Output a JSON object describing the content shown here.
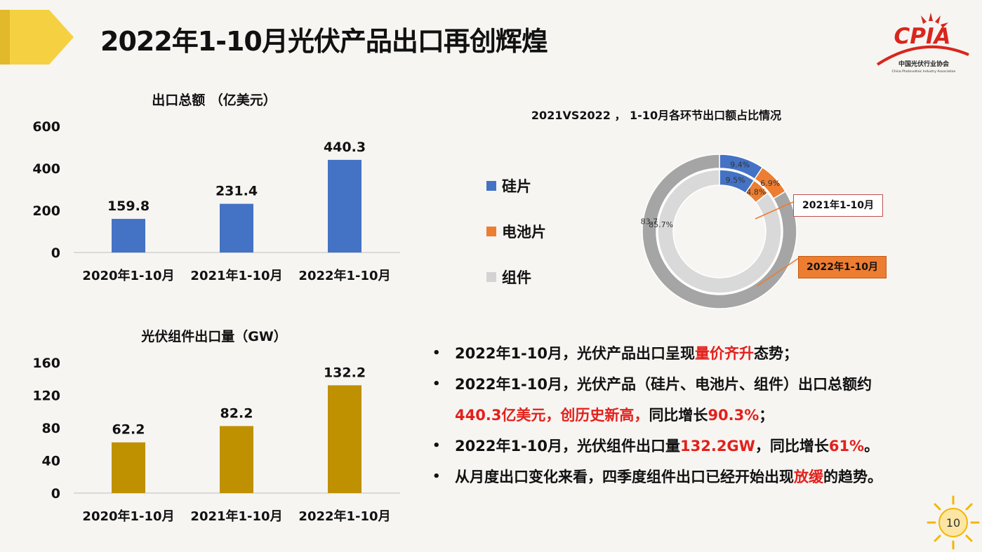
{
  "header": {
    "title": "2022年1-10月光伏产品出口再创辉煌",
    "logo_text": "CPIA",
    "logo_subtitle_cn": "中国光伏行业协会",
    "logo_subtitle_en": "China Photovoltaic Industry Association"
  },
  "colors": {
    "accent_yellow": "#f5d142",
    "bar_blue": "#4472c4",
    "bar_gold": "#bf9000",
    "pie_blue": "#4472c4",
    "pie_orange": "#ed7d31",
    "pie_gray_outer": "#a5a5a5",
    "pie_gray_inner": "#d9d9d9",
    "highlight_red": "#e3201b",
    "logo_red": "#d9261c"
  },
  "chart_data": [
    {
      "type": "bar",
      "title": "出口总额 （亿美元）",
      "categories": [
        "2020年1-10月",
        "2021年1-10月",
        "2022年1-10月"
      ],
      "values": [
        159.8,
        231.4,
        440.3
      ],
      "value_labels": [
        "159.8",
        "231.4",
        "440.3"
      ],
      "ylim": [
        0,
        600
      ],
      "yticks": [
        "0",
        "200",
        "400",
        "600"
      ],
      "ytick_values": [
        0,
        200,
        400,
        600
      ],
      "color": "#4472c4",
      "grid": false
    },
    {
      "type": "bar",
      "title": "光伏组件出口量（GW）",
      "categories": [
        "2020年1-10月",
        "2021年1-10月",
        "2022年1-10月"
      ],
      "values": [
        62.2,
        82.2,
        132.2
      ],
      "value_labels": [
        "62.2",
        "82.2",
        "132.2"
      ],
      "ylim": [
        0,
        160
      ],
      "yticks": [
        "0",
        "40",
        "80",
        "120",
        "160"
      ],
      "ytick_values": [
        0,
        40,
        80,
        120,
        160
      ],
      "color": "#bf9000",
      "grid": false
    },
    {
      "type": "pie",
      "title": "2021VS2022 ， 1-10月各环节出口额占比情况",
      "legend": [
        "硅片",
        "电池片",
        "组件"
      ],
      "legend_placement": "left",
      "rings": [
        {
          "name": "2022年1-10月",
          "position": "outer",
          "values": [
            9.4,
            6.9,
            83.7
          ],
          "labels": [
            "9.4%",
            "6.9%",
            "83.7%"
          ]
        },
        {
          "name": "2021年1-10月",
          "position": "inner",
          "values": [
            9.5,
            4.8,
            85.7
          ],
          "labels": [
            "9.5%",
            "4.8%",
            "85.7%"
          ]
        }
      ]
    }
  ],
  "bullets": [
    {
      "parts": [
        {
          "t": "2022年1-10月，光伏产品出口呈现",
          "red": false
        },
        {
          "t": "量价齐升",
          "red": true
        },
        {
          "t": "态势；",
          "red": false
        }
      ]
    },
    {
      "parts": [
        {
          "t": "2022年1-10月，光伏产品（硅片、电池片、组件）出口总额约",
          "red": false
        }
      ]
    },
    {
      "continuation": true,
      "parts": [
        {
          "t": "440.3亿美元，创历史新高，",
          "red": true
        },
        {
          "t": "同比增长",
          "red": false
        },
        {
          "t": "90.3%",
          "red": true
        },
        {
          "t": "；",
          "red": false
        }
      ]
    },
    {
      "parts": [
        {
          "t": "2022年1-10月，光伏组件出口量",
          "red": false
        },
        {
          "t": "132.2GW",
          "red": true
        },
        {
          "t": "，同比增长",
          "red": false
        },
        {
          "t": "61%",
          "red": true
        },
        {
          "t": "。",
          "red": false
        }
      ]
    },
    {
      "parts": [
        {
          "t": "从月度出口变化来看，四季度组件出口已经开始出现",
          "red": false
        },
        {
          "t": "放缓",
          "red": true
        },
        {
          "t": "的趋势。",
          "red": false
        }
      ]
    }
  ],
  "page_number": "10"
}
